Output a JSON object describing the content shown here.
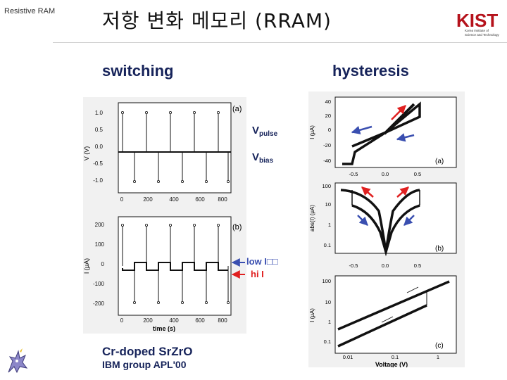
{
  "header": {
    "tag": "Resistive RAM",
    "title": "저항 변화 메모리 (RRAM)",
    "logo_text": "KIST",
    "logo_sub1": "Korea Institute of",
    "logo_sub2": "Science and Technology"
  },
  "switching": {
    "heading": "switching",
    "panel_a": {
      "label": "(a)",
      "ylabel": "V (V)",
      "yticks": [
        "1.0",
        "0.5",
        "0.0",
        "-0.5",
        "-1.0"
      ],
      "xticks": [
        "0",
        "200",
        "400",
        "600",
        "800"
      ],
      "vpulse": "V",
      "vpulse_sub": "pulse",
      "vbias": "V",
      "vbias_sub": "bias"
    },
    "panel_b": {
      "label": "(b)",
      "ylabel": "I (μA)",
      "yticks": [
        "200",
        "100",
        "0",
        "-100",
        "-200"
      ],
      "xticks": [
        "0",
        "200",
        "400",
        "600",
        "800"
      ],
      "xlabel": "time (s)",
      "low_label": "low I□□",
      "hi_label": "hi I"
    }
  },
  "hysteresis": {
    "heading": "hysteresis",
    "panel_a": {
      "label": "(a)",
      "ylabel": "I (μA)",
      "yticks": [
        "40",
        "20",
        "0",
        "-20",
        "-40"
      ],
      "xticks": [
        "-0.5",
        "0.0",
        "0.5"
      ]
    },
    "panel_b": {
      "label": "(b)",
      "ylabel": "abs(I) (μA)",
      "yticks": [
        "100",
        "10",
        "1",
        "0.1"
      ],
      "xticks": [
        "-0.5",
        "0.0",
        "0.5"
      ]
    },
    "panel_c": {
      "label": "(c)",
      "ylabel": "I (μA)",
      "yticks": [
        "100",
        "10",
        "1",
        "0.1"
      ],
      "xticks": [
        "0.01",
        "0.1",
        "1"
      ],
      "xlabel": "Voltage (V)"
    }
  },
  "footer": {
    "line1": "Cr-doped SrZrO",
    "line2": "IBM group APL'00"
  },
  "colors": {
    "heading": "#16235a",
    "red_arrow": "#e02020",
    "blue_arrow": "#3a4fb0",
    "panel_bg": "#f1f1f1"
  }
}
